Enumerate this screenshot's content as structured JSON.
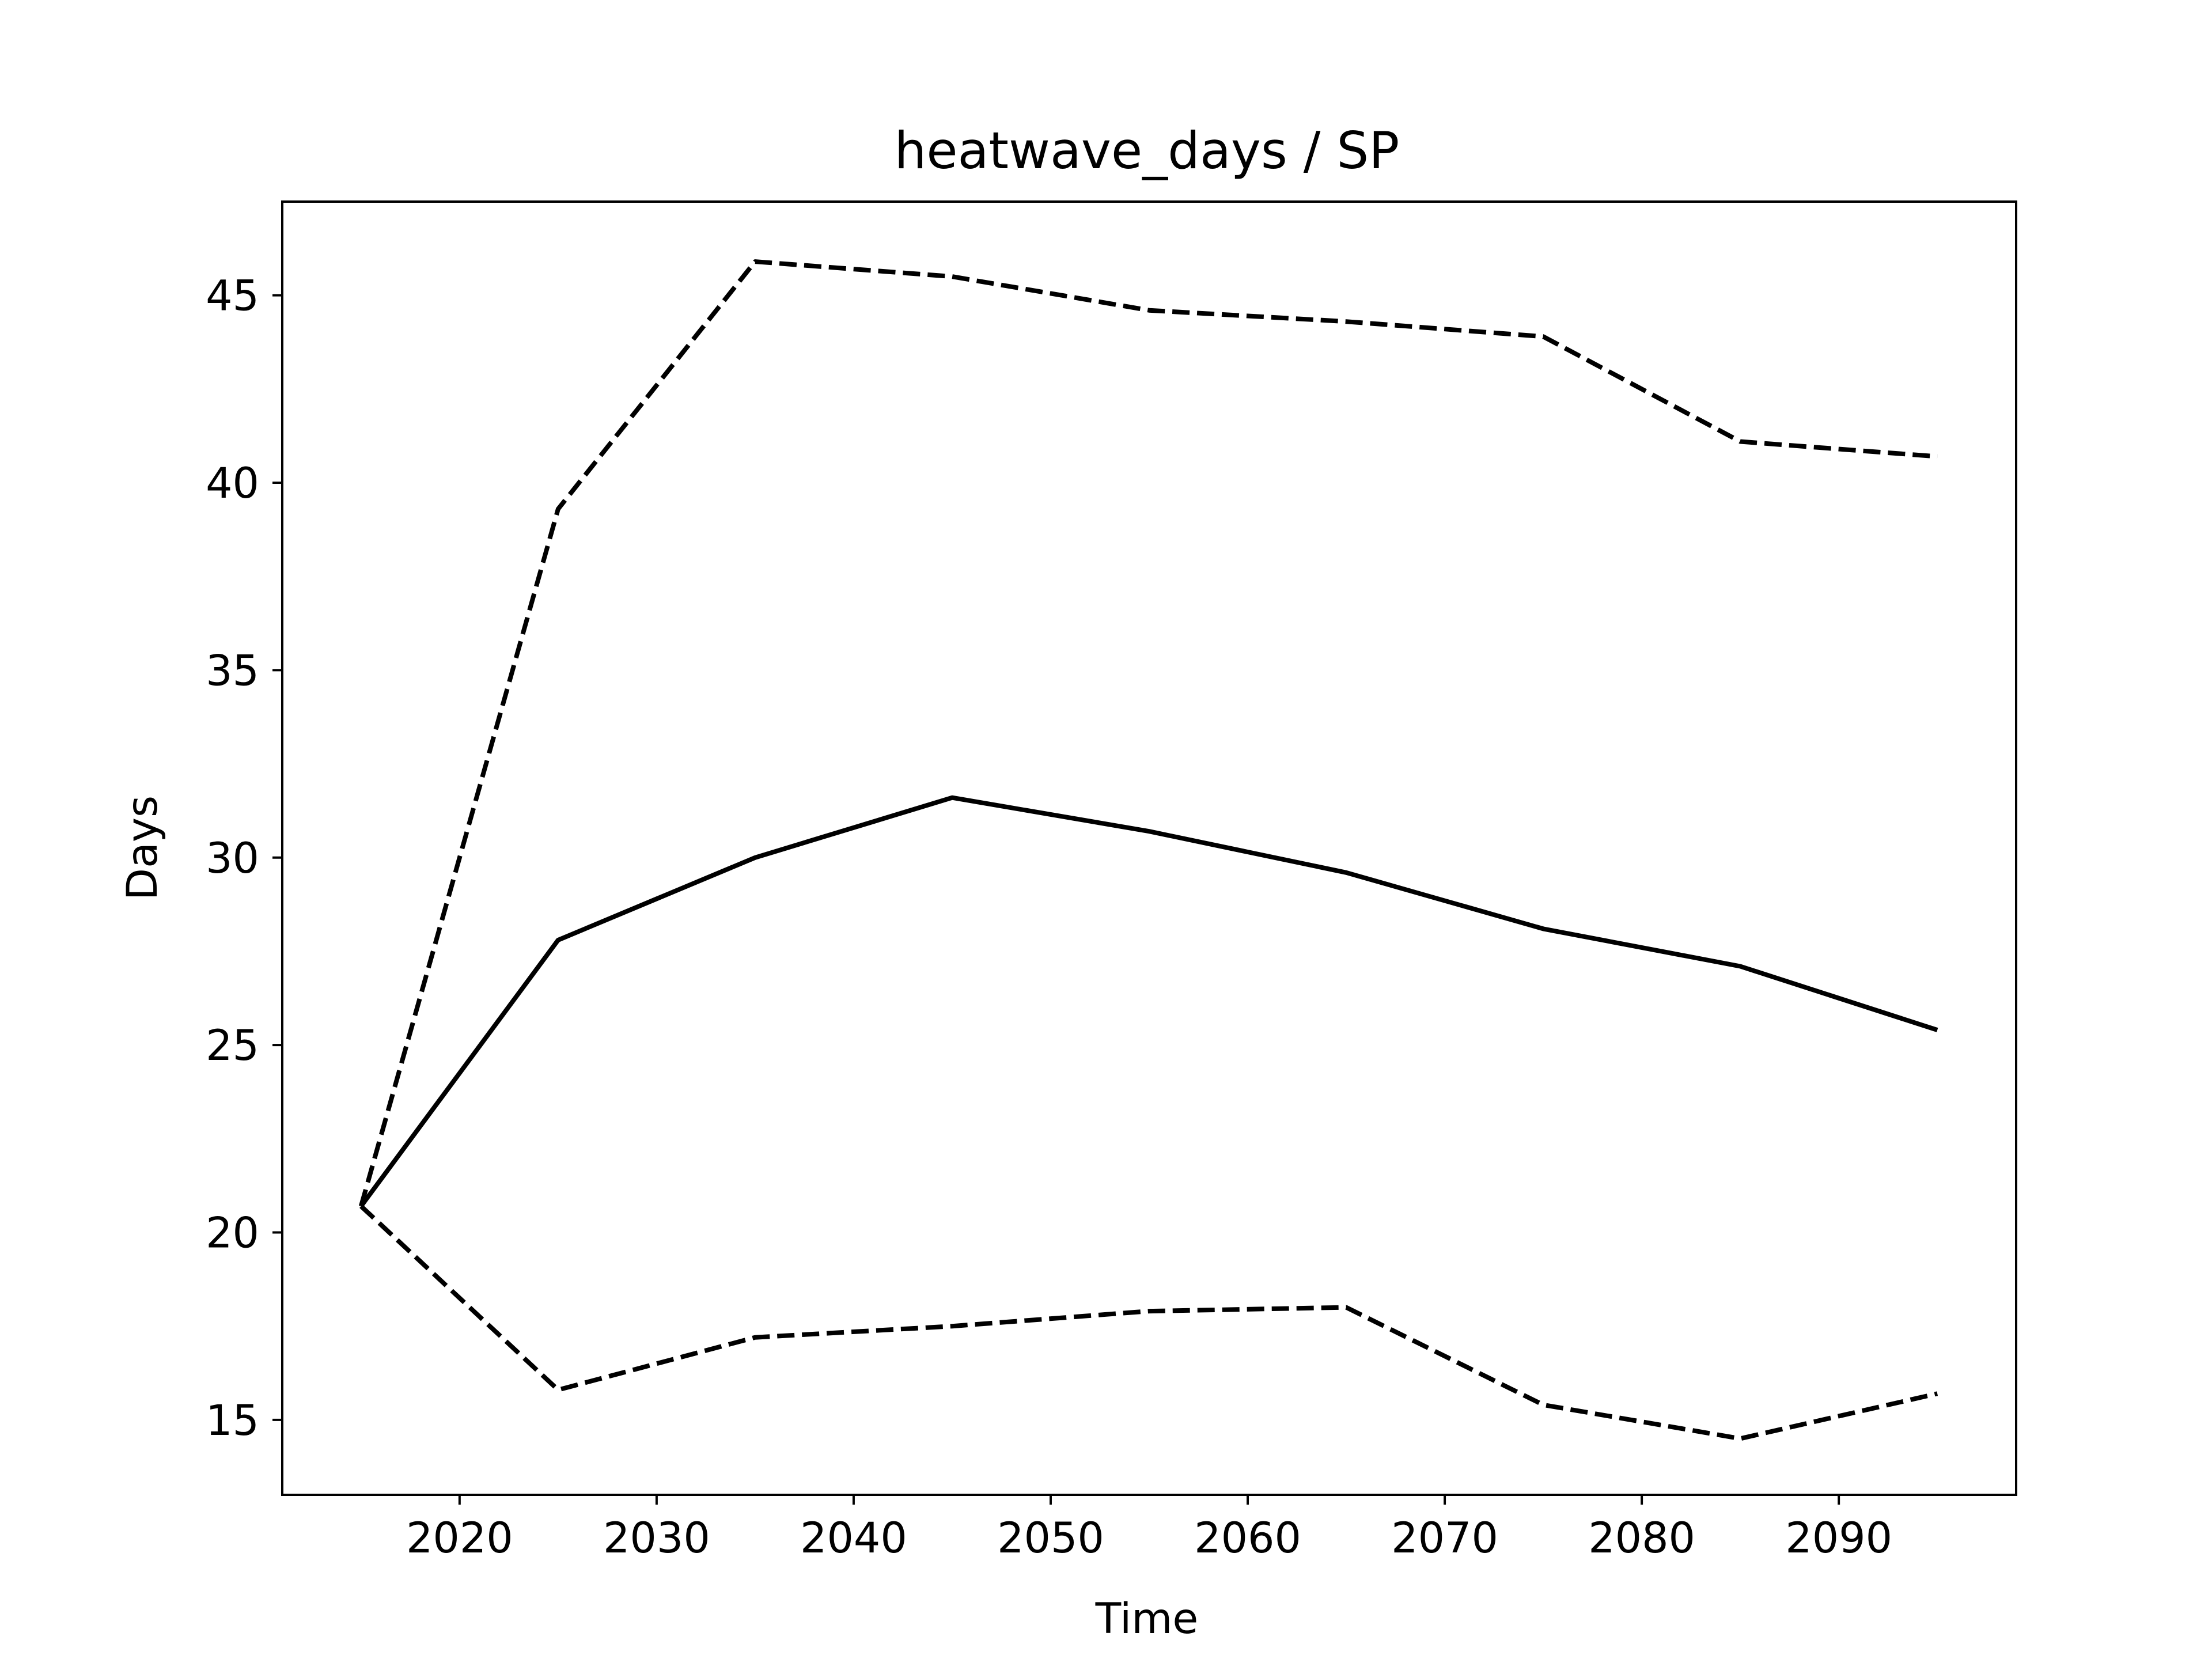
{
  "chart_data": {
    "type": "line",
    "title": "heatwave_days / SP",
    "xlabel": "Time",
    "ylabel": "Days",
    "xlim": [
      2011,
      2099
    ],
    "ylim": [
      13,
      47.5
    ],
    "x_ticks": [
      2020,
      2030,
      2040,
      2050,
      2060,
      2070,
      2080,
      2090
    ],
    "y_ticks": [
      15,
      20,
      25,
      30,
      35,
      40,
      45
    ],
    "grid": false,
    "legend": "none",
    "x": [
      2015,
      2025,
      2035,
      2045,
      2055,
      2065,
      2075,
      2085,
      2095
    ],
    "series": [
      {
        "style": "solid",
        "color": "#000000",
        "values": [
          20.7,
          27.8,
          30.0,
          31.6,
          30.7,
          29.6,
          28.1,
          27.1,
          25.4
        ]
      },
      {
        "style": "dashed",
        "color": "#000000",
        "values": [
          20.7,
          39.3,
          45.9,
          45.5,
          44.6,
          44.3,
          43.9,
          41.1,
          40.7
        ]
      },
      {
        "style": "dashed",
        "color": "#000000",
        "values": [
          20.7,
          15.8,
          17.2,
          17.5,
          17.9,
          18.0,
          15.4,
          14.5,
          15.7
        ]
      }
    ]
  }
}
